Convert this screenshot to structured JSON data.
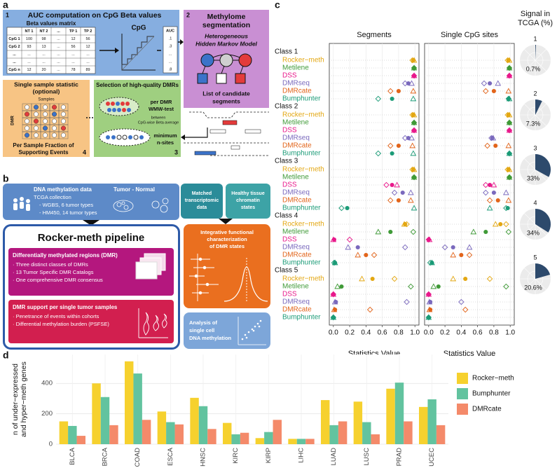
{
  "panel_labels": [
    "a",
    "b",
    "c",
    "d"
  ],
  "workflow": {
    "step1": {
      "number": "1",
      "title": "AUC computation on CpG Beta values",
      "matrix_title": "Beta values matrix",
      "header": [
        "NT 1",
        "NT 2",
        "...",
        "TP 1",
        "TP 2"
      ],
      "rows": [
        [
          "CpG 1",
          100,
          98,
          "...",
          12,
          56
        ],
        [
          "CpG 2",
          93,
          13,
          "...",
          56,
          12
        ],
        [
          "...",
          "...",
          "...",
          "...",
          "...",
          "..."
        ],
        [
          "...",
          "...",
          "...",
          "...",
          "...",
          "..."
        ],
        [
          "CpG n",
          12,
          20,
          "...",
          78,
          89
        ]
      ],
      "curve_label": "CpG",
      "auc_header": "AUC",
      "auc_values": [
        ".1",
        ".3",
        "...",
        "...",
        ".8"
      ]
    },
    "step2": {
      "number": "2",
      "title": [
        "Methylome",
        "segmentation"
      ],
      "model": [
        "Heterogeneous",
        "Hidden Markov Model"
      ],
      "output": [
        "List of candidate",
        "segments"
      ]
    },
    "step3": {
      "number": "3",
      "title": "Selection of high-quality DMRs",
      "test": [
        "per DMR",
        "WMW-test"
      ],
      "test_note": [
        "between",
        "CpG-wise Beta average"
      ],
      "filter": [
        "minimum",
        "n-sites"
      ]
    },
    "step4": {
      "number": "4",
      "title": [
        "Single sample statistic",
        "(optional)"
      ],
      "x_label": "Samples",
      "y_label": "DMR",
      "output": [
        "Per Sample Fraction of",
        "Supporting Events"
      ]
    }
  },
  "overview": {
    "data_box": {
      "title": "DNA methylation data",
      "lines": [
        "TCGA collection",
        "- WGBS, 6 tumor types",
        "- HM450, 14 tumor types"
      ],
      "groups": "Tumor  -  Normal"
    },
    "transcriptome": [
      "Matched",
      "transcriptomic",
      "data"
    ],
    "chromatin": [
      "Healthy tissue",
      "chromatin",
      "states"
    ],
    "pipeline_title": "Rocker-meth pipeline",
    "dmr_box": {
      "title": "Differentially methylated regions (DMR)",
      "items": [
        "· Three distinct classes of DMRs",
        "· 13 Tumor Specific DMR Catalogs",
        "· One comprehensive DMR consensus"
      ]
    },
    "support_box": {
      "title": "DMR support per single tumor samples",
      "items": [
        "· Penetrance of events within cohorts",
        "· Differential methylation burden (PSFSE)"
      ]
    },
    "integrative": [
      "Integrative functional",
      "characterization",
      "of DMR states"
    ],
    "single_cell": [
      "Analysis of",
      "single cell",
      "DNA methylation"
    ]
  },
  "chart_data": [
    {
      "type": "dotplot",
      "facets": [
        "Segments",
        "Single CpG sites"
      ],
      "categories": [
        "Class 1",
        "Class 2",
        "Class 3",
        "Class 4",
        "Class 5"
      ],
      "methods": [
        {
          "name": "Rocker−meth",
          "color": "#e3a712"
        },
        {
          "name": "Metilene",
          "color": "#3f9a37"
        },
        {
          "name": "DSS",
          "color": "#e8198b"
        },
        {
          "name": "DMRseq",
          "color": "#7a69bd"
        },
        {
          "name": "DMRcate",
          "color": "#e2641a"
        },
        {
          "name": "Bumphunter",
          "color": "#1b9b77"
        }
      ],
      "metrics": [
        {
          "name": "F1 score",
          "shape": "circle"
        },
        {
          "name": "Precision",
          "shape": "diamond"
        },
        {
          "name": "Recall",
          "shape": "triangle"
        }
      ],
      "values": [
        [
          [
            [
              0.98,
              0.97,
              0.99
            ],
            [
              0.99,
              0.99,
              0.99
            ],
            [
              0.99,
              0.99,
              0.99
            ],
            [
              0.92,
              0.88,
              0.96
            ],
            [
              0.8,
              0.7,
              0.98
            ],
            [
              0.72,
              0.55,
              0.98
            ]
          ],
          [
            [
              0.98,
              0.97,
              0.99
            ],
            [
              0.99,
              0.99,
              0.99
            ],
            [
              0.99,
              0.99,
              0.99
            ],
            [
              0.92,
              0.88,
              0.96
            ],
            [
              0.8,
              0.7,
              0.97
            ],
            [
              0.72,
              0.55,
              0.98
            ]
          ],
          [
            [
              0.98,
              0.97,
              0.99
            ],
            [
              0.99,
              0.99,
              0.99
            ],
            [
              0.72,
              0.65,
              0.78
            ],
            [
              0.85,
              0.75,
              0.95
            ],
            [
              0.8,
              0.7,
              0.95
            ],
            [
              0.17,
              0.1,
              0.99
            ]
          ],
          [
            [
              0.88,
              0.9,
              0.87
            ],
            [
              0.7,
              0.98,
              0.55
            ],
            [
              0.01,
              0.2,
              0
            ],
            [
              0.3,
              0.88,
              0.18
            ],
            [
              0.4,
              0.5,
              0.3
            ],
            [
              0.02,
              0.01,
              0.02
            ]
          ],
          [
            [
              0.48,
              0.75,
              0.35
            ],
            [
              0.1,
              0.95,
              0.05
            ],
            [
              0,
              0,
              0
            ],
            [
              0.03,
              0.9,
              0.02
            ],
            [
              0.02,
              0.45,
              0.01
            ],
            [
              0,
              0,
              0
            ]
          ]
        ],
        [
          [
            [
              0.98,
              0.97,
              0.99
            ],
            [
              0.99,
              0.99,
              0.99
            ],
            [
              0.99,
              0.99,
              0.99
            ],
            [
              0.75,
              0.68,
              0.85
            ],
            [
              0.8,
              0.7,
              0.98
            ],
            [
              0.98,
              0.98,
              0.99
            ]
          ],
          [
            [
              0.98,
              0.97,
              0.99
            ],
            [
              0.99,
              0.99,
              0.99
            ],
            [
              0.99,
              0.99,
              0.99
            ],
            [
              0.78,
              0.77,
              0.79
            ],
            [
              0.82,
              0.72,
              0.98
            ],
            [
              0.99,
              0.99,
              0.99
            ]
          ],
          [
            [
              0.98,
              0.97,
              0.99
            ],
            [
              0.99,
              0.99,
              0.99
            ],
            [
              0.75,
              0.7,
              0.8
            ],
            [
              0.8,
              0.7,
              0.95
            ],
            [
              0.85,
              0.75,
              0.98
            ],
            [
              0.97,
              0.95,
              0.75
            ]
          ],
          [
            [
              0.88,
              0.95,
              0.82
            ],
            [
              0.7,
              0.98,
              0.55
            ],
            [
              0,
              0,
              0.01
            ],
            [
              0.3,
              0.2,
              0.5
            ],
            [
              0.4,
              0.5,
              0.3
            ],
            [
              0.04,
              0.02,
              0.04
            ]
          ],
          [
            [
              0.45,
              0.75,
              0.3
            ],
            [
              0.12,
              0.95,
              0.06
            ],
            [
              0,
              0,
              0
            ],
            [
              0.02,
              0.4,
              0.01
            ],
            [
              0.02,
              0.45,
              0.01
            ],
            [
              0,
              0,
              0
            ]
          ]
        ]
      ],
      "xlabel": "Statistics Value",
      "xlim": [
        -0.05,
        1.05
      ],
      "xticks": [
        {
          "value": 0,
          "label": "0.0"
        },
        0.2,
        0.4,
        0.6,
        0.8,
        {
          "value": 1,
          "label": "1.0"
        }
      ],
      "grid": true
    },
    {
      "type": "pie",
      "title": [
        "Signal in",
        "TCGA (%)"
      ],
      "categories": [
        "1",
        "2",
        "3",
        "4",
        "5"
      ],
      "values": [
        0.7,
        7.3,
        33,
        34,
        20.6
      ],
      "value_labels": [
        "0.7%",
        "7.3%",
        "33%",
        "34%",
        "20.6%"
      ],
      "color": "#2d4a6c"
    },
    {
      "type": "bar",
      "categories": [
        "BLCA",
        "BRCA",
        "COAD",
        "ESCA",
        "HNSC",
        "KIRC",
        "KIRP",
        "LIHC",
        "LUAD",
        "LUSC",
        "PRAD",
        "UCEC"
      ],
      "series": [
        {
          "name": "Rocker−meth",
          "color": "#f6d12e",
          "values": [
            150,
            400,
            545,
            215,
            305,
            140,
            40,
            35,
            290,
            280,
            365,
            245
          ]
        },
        {
          "name": "Bumphunter",
          "color": "#62c39f",
          "values": [
            120,
            310,
            465,
            145,
            250,
            65,
            80,
            35,
            125,
            145,
            405,
            295
          ]
        },
        {
          "name": "DMRcate",
          "color": "#f48a6a",
          "values": [
            55,
            125,
            160,
            130,
            100,
            75,
            160,
            35,
            150,
            65,
            150,
            125
          ]
        }
      ],
      "ylabel": [
        "n of under−expressed",
        "and hyper−meth genes"
      ],
      "ylim": [
        0,
        590
      ],
      "yticks": [
        0,
        200,
        400
      ],
      "grid": true
    }
  ]
}
